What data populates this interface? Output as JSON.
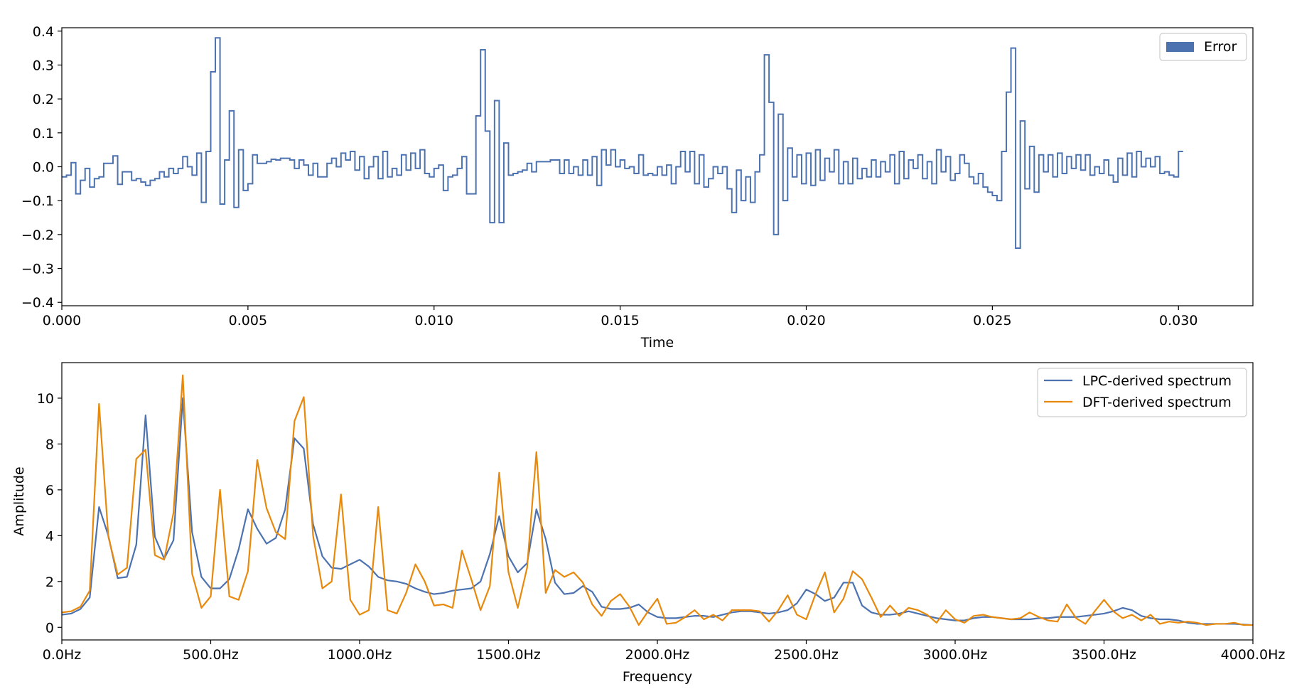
{
  "colors": {
    "error": "#4c72b0",
    "lpc": "#4c72b0",
    "dft": "#e8890c",
    "axes": "#000000"
  },
  "chart_data": [
    {
      "type": "step",
      "title": "",
      "xlabel": "Time",
      "ylabel": "",
      "xlim": [
        0,
        0.032
      ],
      "ylim": [
        -0.41,
        0.41
      ],
      "xticks": [
        0,
        0.005,
        0.01,
        0.015,
        0.02,
        0.025,
        0.03
      ],
      "xtick_labels": [
        "0.000",
        "0.005",
        "0.010",
        "0.015",
        "0.020",
        "0.025",
        "0.030"
      ],
      "yticks": [
        -0.4,
        -0.3,
        -0.2,
        -0.1,
        0.0,
        0.1,
        0.2,
        0.3,
        0.4
      ],
      "ytick_labels": [
        "−0.4",
        "−0.3",
        "−0.2",
        "−0.1",
        "0.0",
        "0.1",
        "0.2",
        "0.3",
        "0.4"
      ],
      "legend": {
        "entries": [
          "Error"
        ],
        "placement": "upper-right"
      },
      "sample_interval": 0.000125,
      "series": [
        {
          "name": "Error",
          "values": [
            -0.03,
            -0.025,
            0.012,
            -0.08,
            -0.04,
            -0.005,
            -0.06,
            -0.035,
            -0.03,
            0.01,
            0.01,
            0.032,
            -0.052,
            -0.015,
            -0.015,
            -0.04,
            -0.035,
            -0.045,
            -0.055,
            -0.04,
            -0.035,
            -0.015,
            -0.03,
            -0.005,
            -0.02,
            -0.005,
            0.03,
            0.0,
            -0.025,
            0.04,
            -0.105,
            0.045,
            0.28,
            0.38,
            -0.11,
            0.02,
            0.165,
            -0.12,
            0.05,
            -0.07,
            -0.05,
            0.035,
            0.01,
            0.01,
            0.015,
            0.022,
            0.02,
            0.025,
            0.025,
            0.02,
            -0.005,
            0.02,
            0.005,
            -0.025,
            0.01,
            -0.03,
            -0.03,
            0.01,
            0.025,
            0.0,
            0.04,
            0.02,
            0.045,
            -0.01,
            0.03,
            -0.035,
            0.0,
            0.03,
            -0.035,
            0.045,
            -0.03,
            -0.005,
            -0.025,
            0.035,
            -0.01,
            0.04,
            -0.005,
            0.05,
            -0.02,
            -0.03,
            -0.005,
            0.005,
            -0.07,
            -0.03,
            -0.025,
            -0.005,
            0.03,
            -0.08,
            -0.08,
            0.15,
            0.345,
            0.105,
            -0.165,
            0.195,
            -0.165,
            0.07,
            -0.025,
            -0.02,
            -0.015,
            -0.01,
            0.01,
            -0.015,
            0.015,
            0.015,
            0.015,
            0.02,
            0.02,
            -0.02,
            0.02,
            -0.02,
            0.0,
            -0.025,
            0.02,
            -0.025,
            0.03,
            -0.055,
            0.05,
            0.005,
            0.05,
            0.0,
            0.02,
            -0.005,
            0.0,
            -0.02,
            0.035,
            -0.025,
            -0.02,
            -0.025,
            0.0,
            -0.025,
            0.005,
            -0.05,
            0.0,
            0.045,
            -0.015,
            0.045,
            -0.05,
            0.035,
            -0.06,
            -0.035,
            0.0,
            -0.02,
            0.0,
            -0.065,
            -0.135,
            -0.01,
            -0.1,
            -0.03,
            -0.105,
            -0.015,
            0.035,
            0.33,
            0.19,
            -0.2,
            0.155,
            -0.1,
            0.055,
            -0.03,
            0.035,
            -0.05,
            0.04,
            -0.055,
            0.05,
            -0.04,
            0.025,
            -0.015,
            0.05,
            -0.05,
            0.015,
            -0.05,
            0.025,
            -0.035,
            -0.005,
            -0.03,
            0.02,
            -0.03,
            0.015,
            -0.015,
            0.035,
            -0.05,
            0.045,
            -0.035,
            0.02,
            -0.005,
            0.035,
            -0.035,
            0.015,
            -0.05,
            0.05,
            -0.015,
            0.03,
            -0.04,
            -0.02,
            0.035,
            0.01,
            -0.03,
            -0.05,
            -0.02,
            -0.06,
            -0.075,
            -0.085,
            -0.1,
            0.045,
            0.22,
            0.35,
            -0.24,
            0.135,
            -0.065,
            0.06,
            -0.075,
            0.035,
            -0.015,
            0.035,
            -0.03,
            0.04,
            -0.02,
            0.03,
            -0.005,
            0.035,
            -0.01,
            0.035,
            -0.025,
            0.0,
            -0.02,
            0.02,
            -0.025,
            -0.045,
            0.025,
            -0.025,
            0.04,
            -0.03,
            0.045,
            0.0,
            0.025,
            0.0,
            0.03,
            -0.02,
            -0.015,
            -0.025,
            -0.03,
            0.045
          ]
        }
      ]
    },
    {
      "type": "line",
      "title": "",
      "xlabel": "Frequency",
      "ylabel": "Amplitude",
      "xlim": [
        0,
        4000
      ],
      "ylim": [
        -0.55,
        11.55
      ],
      "xticks": [
        0,
        500,
        1000,
        1500,
        2000,
        2500,
        3000,
        3500,
        4000
      ],
      "xtick_labels": [
        "0.0Hz",
        "500.0Hz",
        "1000.0Hz",
        "1500.0Hz",
        "2000.0Hz",
        "2500.0Hz",
        "3000.0Hz",
        "3500.0Hz",
        "4000.0Hz"
      ],
      "yticks": [
        0,
        2,
        4,
        6,
        8,
        10
      ],
      "ytick_labels": [
        "0",
        "2",
        "4",
        "6",
        "8",
        "10"
      ],
      "legend": {
        "entries": [
          "LPC-derived spectrum",
          "DFT-derived spectrum"
        ],
        "placement": "upper-right"
      },
      "x_step": 31.25,
      "series": [
        {
          "name": "LPC-derived spectrum",
          "values": [
            0.55,
            0.6,
            0.8,
            1.3,
            5.25,
            4.0,
            2.15,
            2.2,
            3.6,
            9.25,
            3.95,
            3.0,
            3.8,
            10.0,
            4.15,
            2.2,
            1.7,
            1.7,
            2.1,
            3.4,
            5.15,
            4.3,
            3.65,
            3.9,
            5.15,
            8.25,
            7.8,
            4.5,
            3.1,
            2.6,
            2.55,
            2.75,
            2.95,
            2.65,
            2.2,
            2.05,
            2.0,
            1.9,
            1.7,
            1.55,
            1.45,
            1.5,
            1.6,
            1.65,
            1.7,
            2.0,
            3.2,
            4.85,
            3.1,
            2.4,
            2.8,
            5.15,
            3.85,
            1.95,
            1.45,
            1.5,
            1.8,
            1.55,
            0.9,
            0.8,
            0.8,
            0.85,
            1.0,
            0.65,
            0.45,
            0.4,
            0.4,
            0.45,
            0.5,
            0.5,
            0.45,
            0.55,
            0.65,
            0.7,
            0.7,
            0.65,
            0.6,
            0.65,
            0.75,
            1.05,
            1.65,
            1.45,
            1.15,
            1.3,
            1.95,
            1.95,
            0.95,
            0.65,
            0.55,
            0.55,
            0.6,
            0.7,
            0.6,
            0.5,
            0.4,
            0.35,
            0.3,
            0.3,
            0.4,
            0.45,
            0.45,
            0.4,
            0.35,
            0.35,
            0.35,
            0.4,
            0.4,
            0.45,
            0.45,
            0.45,
            0.5,
            0.55,
            0.6,
            0.7,
            0.85,
            0.75,
            0.5,
            0.4,
            0.35,
            0.35,
            0.3,
            0.2,
            0.15,
            0.15,
            0.15,
            0.15,
            0.15,
            0.12,
            0.1
          ]
        },
        {
          "name": "DFT-derived spectrum",
          "values": [
            0.65,
            0.7,
            0.9,
            1.6,
            9.75,
            3.95,
            2.3,
            2.6,
            7.35,
            7.75,
            3.15,
            2.95,
            5.0,
            11.0,
            2.35,
            0.85,
            1.35,
            6.0,
            1.35,
            1.2,
            2.45,
            7.3,
            5.2,
            4.15,
            3.85,
            9.0,
            10.05,
            4.0,
            1.7,
            2.0,
            5.8,
            1.2,
            0.55,
            0.75,
            5.25,
            0.75,
            0.6,
            1.5,
            2.75,
            2.0,
            0.95,
            1.0,
            0.85,
            3.35,
            2.1,
            0.75,
            1.8,
            6.75,
            2.4,
            0.85,
            2.6,
            7.65,
            1.5,
            2.5,
            2.2,
            2.4,
            1.95,
            1.0,
            0.5,
            1.15,
            1.45,
            0.9,
            0.1,
            0.7,
            1.25,
            0.15,
            0.2,
            0.45,
            0.75,
            0.35,
            0.55,
            0.3,
            0.75,
            0.75,
            0.75,
            0.7,
            0.25,
            0.75,
            1.4,
            0.55,
            0.35,
            1.45,
            2.4,
            0.65,
            1.25,
            2.45,
            2.1,
            1.3,
            0.45,
            0.95,
            0.5,
            0.85,
            0.75,
            0.55,
            0.2,
            0.75,
            0.35,
            0.2,
            0.5,
            0.55,
            0.45,
            0.4,
            0.35,
            0.4,
            0.65,
            0.45,
            0.3,
            0.25,
            1.0,
            0.4,
            0.15,
            0.7,
            1.2,
            0.7,
            0.4,
            0.55,
            0.3,
            0.55,
            0.15,
            0.25,
            0.2,
            0.25,
            0.2,
            0.1,
            0.15,
            0.15,
            0.2,
            0.1,
            0.1
          ]
        }
      ]
    }
  ]
}
